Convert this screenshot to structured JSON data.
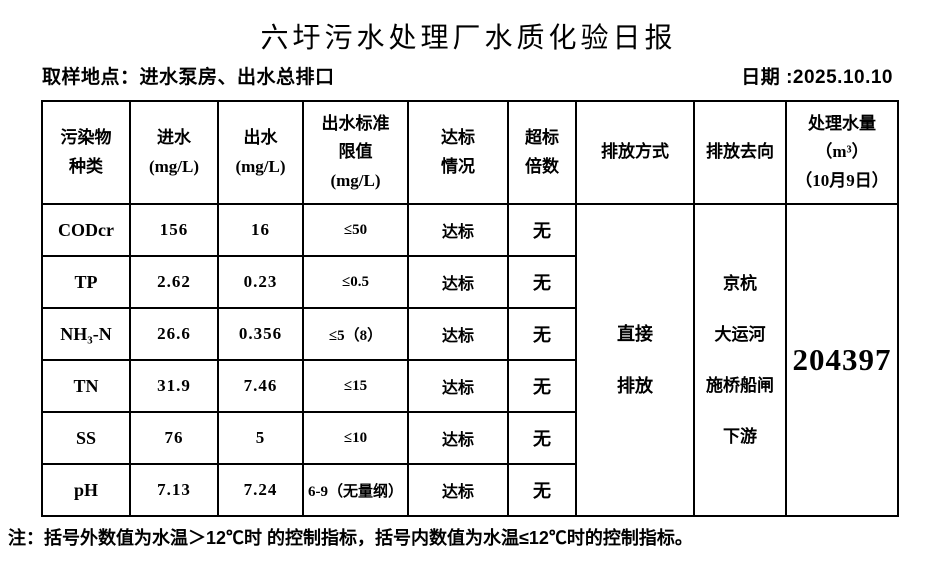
{
  "title": "六圩污水处理厂水质化验日报",
  "sampling_location": "取样地点：进水泵房、出水总排口",
  "date_label": "日期 :2025.10.10",
  "table": {
    "headers": [
      "污染物\n种类",
      "进水\n(mg/L)",
      "出水\n(mg/L)",
      "出水标准\n限值\n(mg/L)",
      "达标\n情况",
      "超标\n倍数",
      "排放方式",
      "排放去向",
      "处理水量\n（m³）\n（10月9日）"
    ],
    "rows": [
      {
        "pollutant": "CODcr",
        "inflow": "156",
        "outflow": "16",
        "limit": "≤50",
        "status": "达标",
        "exceed": "无"
      },
      {
        "pollutant": "TP",
        "inflow": "2.62",
        "outflow": "0.23",
        "limit": "≤0.5",
        "status": "达标",
        "exceed": "无"
      },
      {
        "pollutant": "NH₃-N",
        "inflow": "26.6",
        "outflow": "0.356",
        "limit": "≤5（8）",
        "status": "达标",
        "exceed": "无"
      },
      {
        "pollutant": "TN",
        "inflow": "31.9",
        "outflow": "7.46",
        "limit": "≤15",
        "status": "达标",
        "exceed": "无"
      },
      {
        "pollutant": "SS",
        "inflow": "76",
        "outflow": "5",
        "limit": "≤10",
        "status": "达标",
        "exceed": "无"
      },
      {
        "pollutant": "pH",
        "inflow": "7.13",
        "outflow": "7.24",
        "limit": "6-9（无量纲）",
        "status": "达标",
        "exceed": "无"
      }
    ],
    "merged": {
      "discharge_mode": "直接\n排放",
      "discharge_destination": "京杭\n大运河\n施桥船闸\n下游",
      "treated_water_volume": "204397"
    }
  },
  "note": "注：括号外数值为水温＞12℃时 的控制指标，括号内数值为水温≤12℃时的控制指标。"
}
